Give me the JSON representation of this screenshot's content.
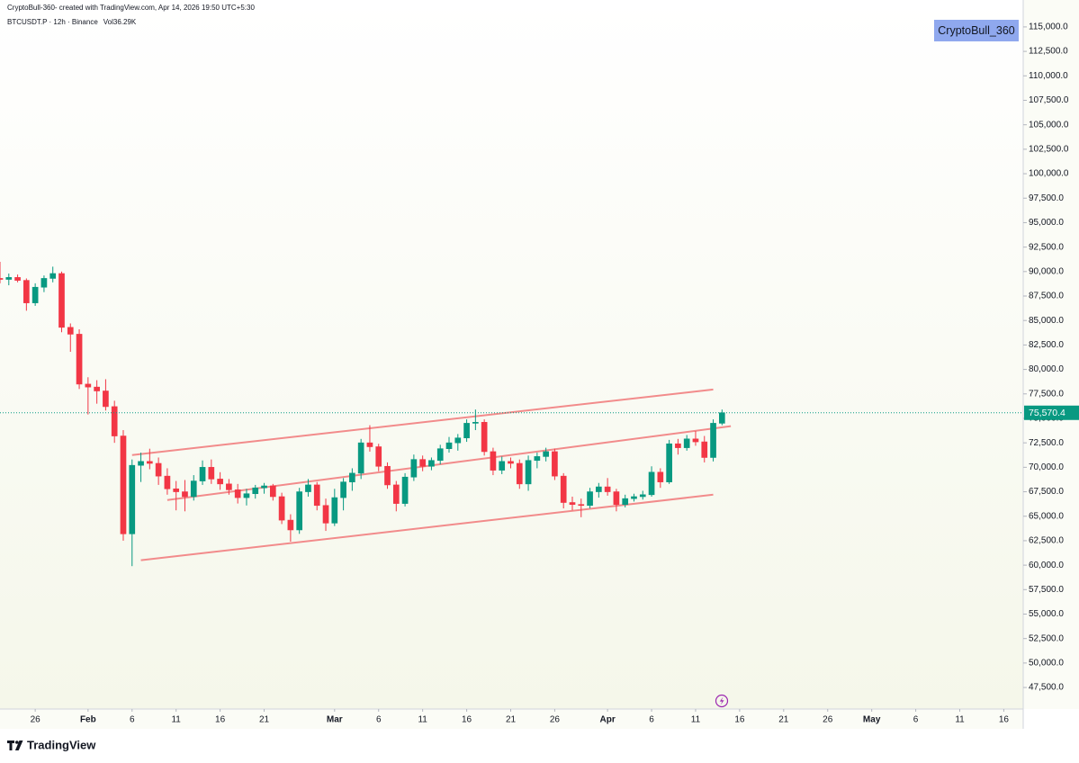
{
  "chart_data": {
    "type": "candlestick",
    "credit": "CryptoBull-360- created with TradingView.com, Apr 14, 2026 19:50 UTC+5:30",
    "title": "BTCUSDT.P · 12h · Binance",
    "volume": "Vol36.29K",
    "watermark": "CryptoBull_360",
    "brand": "TradingView",
    "up_color": "#089981",
    "down_color": "#f23645",
    "line_color": "#f28b8b",
    "grid": false,
    "price_label": "75,570.4",
    "xlim": [
      "Jan 22",
      "May 18"
    ],
    "ylim": [
      45300,
      117750
    ],
    "xticks": [
      {
        "value": "Jan 26",
        "label": "26"
      },
      {
        "value": "Feb 1",
        "label": "Feb"
      },
      {
        "value": "Feb 6",
        "label": "6"
      },
      {
        "value": "Feb 11",
        "label": "11"
      },
      {
        "value": "Feb 16",
        "label": "16"
      },
      {
        "value": "Feb 21",
        "label": "21"
      },
      {
        "value": "Mar 1",
        "label": "Mar"
      },
      {
        "value": "Mar 6",
        "label": "6"
      },
      {
        "value": "Mar 11",
        "label": "11"
      },
      {
        "value": "Mar 16",
        "label": "16"
      },
      {
        "value": "Mar 21",
        "label": "21"
      },
      {
        "value": "Mar 26",
        "label": "26"
      },
      {
        "value": "Apr 1",
        "label": "Apr"
      },
      {
        "value": "Apr 6",
        "label": "6"
      },
      {
        "value": "Apr 11",
        "label": "11"
      },
      {
        "value": "Apr 16",
        "label": "16"
      },
      {
        "value": "Apr 21",
        "label": "21"
      },
      {
        "value": "Apr 26",
        "label": "26"
      },
      {
        "value": "May 1",
        "label": "May"
      },
      {
        "value": "May 6",
        "label": "6"
      },
      {
        "value": "May 11",
        "label": "11"
      },
      {
        "value": "May 16",
        "label": "16"
      }
    ],
    "yticks": [
      {
        "value": 115000,
        "label": "115,000.0"
      },
      {
        "value": 112500,
        "label": "112,500.0"
      },
      {
        "value": 110000,
        "label": "110,000.0"
      },
      {
        "value": 107500,
        "label": "107,500.0"
      },
      {
        "value": 105000,
        "label": "105,000.0"
      },
      {
        "value": 102500,
        "label": "102,500.0"
      },
      {
        "value": 100000,
        "label": "100,000.0"
      },
      {
        "value": 97500,
        "label": "97,500.0"
      },
      {
        "value": 95000,
        "label": "95,000.0"
      },
      {
        "value": 92500,
        "label": "92,500.0"
      },
      {
        "value": 90000,
        "label": "90,000.0"
      },
      {
        "value": 87500,
        "label": "87,500.0"
      },
      {
        "value": 85000,
        "label": "85,000.0"
      },
      {
        "value": 82500,
        "label": "82,500.0"
      },
      {
        "value": 80000,
        "label": "80,000.0"
      },
      {
        "value": 77500,
        "label": "77,500.0"
      },
      {
        "value": 75000,
        "label": "75,000.0"
      },
      {
        "value": 72500,
        "label": "72,500.0"
      },
      {
        "value": 70000,
        "label": "70,000.0"
      },
      {
        "value": 67500,
        "label": "67,500.0"
      },
      {
        "value": 65000,
        "label": "65,000.0"
      },
      {
        "value": 62500,
        "label": "62,500.0"
      },
      {
        "value": 60000,
        "label": "60,000.0"
      },
      {
        "value": 57500,
        "label": "57,500.0"
      },
      {
        "value": 55000,
        "label": "55,000.0"
      },
      {
        "value": 52500,
        "label": "52,500.0"
      },
      {
        "value": 50000,
        "label": "50,000.0"
      },
      {
        "value": 47500,
        "label": "47,500.0"
      }
    ],
    "trend_lines": [
      {
        "x": [
          "Feb 6",
          "Apr 13"
        ],
        "y": [
          71250,
          77950
        ]
      },
      {
        "x": [
          "Feb 10",
          "Apr 15"
        ],
        "y": [
          66650,
          74200
        ]
      },
      {
        "x": [
          "Feb 7",
          "Apr 13"
        ],
        "y": [
          60500,
          67200
        ]
      }
    ],
    "x": [
      "Jan 22",
      "Jan 23",
      "Jan 24",
      "Jan 25",
      "Jan 26",
      "Jan 27",
      "Jan 28",
      "Jan 29",
      "Jan 30",
      "Jan 31",
      "Feb 1",
      "Feb 2",
      "Feb 3",
      "Feb 4",
      "Feb 5",
      "Feb 6",
      "Feb 7",
      "Feb 8",
      "Feb 9",
      "Feb 10",
      "Feb 11",
      "Feb 12",
      "Feb 13",
      "Feb 14",
      "Feb 15",
      "Feb 16",
      "Feb 17",
      "Feb 18",
      "Feb 19",
      "Feb 20",
      "Feb 21",
      "Feb 22",
      "Feb 23",
      "Feb 24",
      "Feb 25",
      "Feb 26",
      "Feb 27",
      "Feb 28",
      "Mar 1",
      "Mar 2",
      "Mar 3",
      "Mar 4",
      "Mar 5",
      "Mar 6",
      "Mar 7",
      "Mar 8",
      "Mar 9",
      "Mar 10",
      "Mar 11",
      "Mar 12",
      "Mar 13",
      "Mar 14",
      "Mar 15",
      "Mar 16",
      "Mar 17",
      "Mar 18",
      "Mar 19",
      "Mar 20",
      "Mar 21",
      "Mar 22",
      "Mar 23",
      "Mar 24",
      "Mar 25",
      "Mar 26",
      "Mar 27",
      "Mar 28",
      "Mar 29",
      "Mar 30",
      "Mar 31",
      "Apr 1",
      "Apr 2",
      "Apr 3",
      "Apr 4",
      "Apr 5",
      "Apr 6",
      "Apr 7",
      "Apr 8",
      "Apr 9",
      "Apr 10",
      "Apr 11",
      "Apr 12",
      "Apr 13",
      "Apr 14"
    ],
    "open": [
      89300,
      89200,
      89400,
      89100,
      86800,
      88400,
      89300,
      89800,
      84300,
      83600,
      78500,
      78200,
      77800,
      76200,
      73200,
      63200,
      70200,
      70600,
      70400,
      69100,
      67800,
      67500,
      67000,
      68600,
      70000,
      68800,
      68300,
      67700,
      66900,
      67300,
      67900,
      68100,
      67000,
      64600,
      63600,
      67500,
      68200,
      66100,
      64300,
      66900,
      68500,
      69400,
      72500,
      72100,
      70100,
      68200,
      66300,
      69000,
      70800,
      70100,
      70700,
      71900,
      72500,
      73000,
      74500,
      74600,
      71600,
      69700,
      70600,
      70400,
      68300,
      70700,
      71100,
      71600,
      69100,
      66400,
      66200,
      66100,
      67500,
      68000,
      67500,
      66200,
      66800,
      67000,
      67200,
      69500,
      68500,
      72400,
      72000,
      72900,
      72600,
      71000,
      74500
    ],
    "high": [
      91000,
      89800,
      89700,
      89300,
      88800,
      89600,
      90500,
      90000,
      84700,
      84100,
      79200,
      78900,
      79000,
      76800,
      73800,
      70800,
      71500,
      71900,
      71000,
      69900,
      68600,
      68700,
      69200,
      70700,
      70800,
      69500,
      68800,
      68300,
      67800,
      68200,
      68400,
      68300,
      67400,
      65200,
      67900,
      68800,
      68500,
      66800,
      67800,
      68900,
      69900,
      72900,
      74300,
      72400,
      70500,
      68600,
      69400,
      71300,
      71200,
      71000,
      72300,
      73100,
      73400,
      74900,
      75900,
      74900,
      72000,
      71100,
      71000,
      70800,
      71200,
      71500,
      72000,
      71900,
      69400,
      67000,
      66800,
      67900,
      68400,
      68900,
      67800,
      67200,
      67300,
      67600,
      70100,
      69900,
      72800,
      72900,
      73300,
      73700,
      73200,
      74900,
      75900
    ],
    "low": [
      88800,
      88600,
      88900,
      86000,
      86500,
      87900,
      88900,
      83800,
      81800,
      78000,
      75400,
      76500,
      75800,
      72500,
      62500,
      59900,
      68500,
      69800,
      68200,
      67200,
      65600,
      65500,
      66600,
      68200,
      68300,
      67700,
      67200,
      66300,
      66100,
      66800,
      67300,
      66600,
      64200,
      62400,
      63200,
      67000,
      65600,
      63500,
      64000,
      65600,
      67600,
      68800,
      71600,
      69600,
      67800,
      65500,
      66000,
      68600,
      69600,
      69700,
      70300,
      71500,
      71700,
      72600,
      73800,
      71200,
      69200,
      69300,
      69900,
      67800,
      67600,
      69900,
      70600,
      68700,
      65800,
      65600,
      64900,
      65800,
      66900,
      67100,
      65500,
      65900,
      66500,
      66700,
      67000,
      67900,
      68300,
      71300,
      71700,
      72200,
      70500,
      70600,
      74300
    ],
    "close": [
      89200,
      89400,
      89100,
      86800,
      88400,
      89300,
      89800,
      84300,
      83600,
      78500,
      78200,
      77800,
      76200,
      73200,
      63200,
      70200,
      70600,
      70400,
      69100,
      67800,
      67500,
      67000,
      68600,
      70000,
      68800,
      68300,
      67700,
      66900,
      67300,
      67900,
      68100,
      67000,
      64600,
      63600,
      67500,
      68200,
      66100,
      64300,
      66900,
      68500,
      69400,
      72500,
      72100,
      70100,
      68200,
      66300,
      69000,
      70800,
      70100,
      70700,
      71900,
      72500,
      73000,
      74500,
      74600,
      71600,
      69700,
      70600,
      70400,
      68300,
      70700,
      71100,
      71600,
      69100,
      66400,
      66200,
      66100,
      67500,
      68000,
      67500,
      66200,
      66800,
      67000,
      67200,
      69500,
      68500,
      72400,
      72000,
      72900,
      72600,
      71000,
      74500,
      75570.4
    ]
  }
}
